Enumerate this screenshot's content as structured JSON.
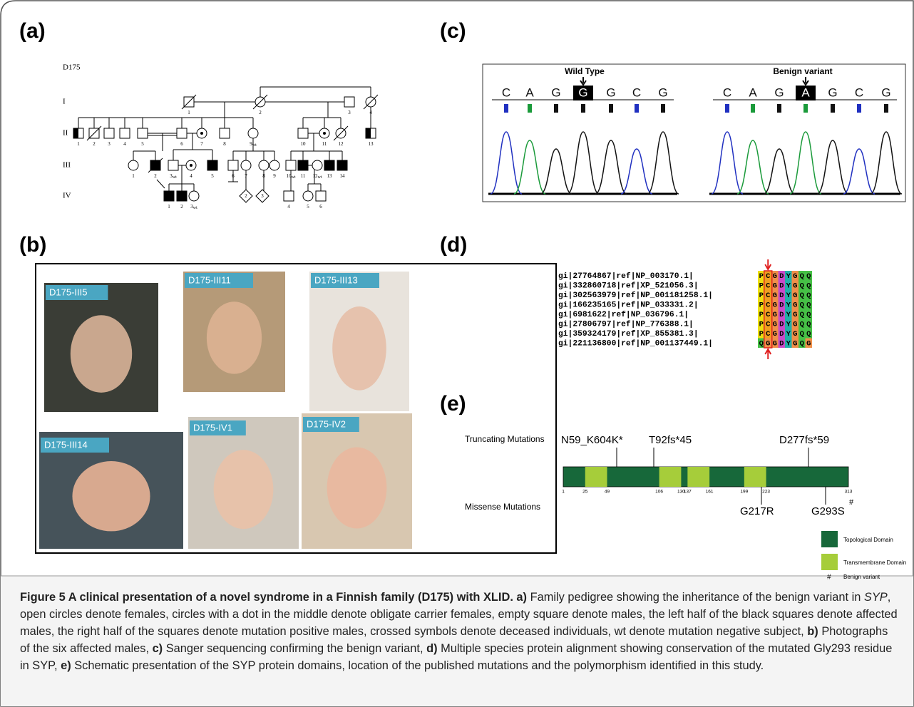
{
  "panels": {
    "a": "(a)",
    "b": "(b)",
    "c": "(c)",
    "d": "(d)",
    "e": "(e)"
  },
  "pedigree": {
    "family": "D175",
    "generations": [
      {
        "label": "I",
        "individuals": [
          {
            "label": "1"
          },
          {
            "label": "2"
          },
          {
            "label": "3"
          },
          {
            "label": "4"
          }
        ]
      },
      {
        "label": "II",
        "individuals": [
          {
            "label": "1"
          },
          {
            "label": "2"
          },
          {
            "label": "3"
          },
          {
            "label": "4"
          },
          {
            "label": "5"
          },
          {
            "label": "6"
          },
          {
            "label": "7"
          },
          {
            "label": "8"
          },
          {
            "label": "9",
            "sub": "wt"
          },
          {
            "label": "10"
          },
          {
            "label": "11"
          },
          {
            "label": "12"
          },
          {
            "label": "13"
          }
        ]
      },
      {
        "label": "III",
        "individuals": [
          {
            "label": "1"
          },
          {
            "label": "2"
          },
          {
            "label": "3",
            "sub": "wt"
          },
          {
            "label": "4"
          },
          {
            "label": "5"
          },
          {
            "label": "6"
          },
          {
            "label": "7"
          },
          {
            "label": "8"
          },
          {
            "label": "9"
          },
          {
            "label": "10",
            "sub": "wt"
          },
          {
            "label": "11"
          },
          {
            "label": "12",
            "sub": "wt"
          },
          {
            "label": "13"
          },
          {
            "label": "14"
          }
        ]
      },
      {
        "label": "IV",
        "individuals": [
          {
            "label": "1"
          },
          {
            "label": "2"
          },
          {
            "label": "3",
            "sub": "wt"
          },
          {
            "label": "2"
          },
          {
            "label": "3"
          },
          {
            "label": "4"
          },
          {
            "label": "5"
          },
          {
            "label": "6"
          }
        ]
      }
    ]
  },
  "photos": [
    "D175-III5",
    "D175-III11",
    "D175-III13",
    "D175-III14",
    "D175-IV1",
    "D175-IV2"
  ],
  "sequencing": [
    {
      "title": "Wild Type",
      "bases": [
        "C",
        "A",
        "G",
        "G",
        "G",
        "C",
        "G"
      ]
    },
    {
      "title": "Benign variant",
      "bases": [
        "C",
        "A",
        "G",
        "A",
        "G",
        "C",
        "G"
      ]
    }
  ],
  "alignment": [
    {
      "id": "gi|27764867|ref|NP_003170.1|",
      "sequence": [
        "P",
        "C",
        "G",
        "D",
        "Y",
        "G",
        "Q",
        "Q"
      ]
    },
    {
      "id": "gi|332860718|ref|XP_521056.3|",
      "sequence": [
        "P",
        "C",
        "G",
        "D",
        "Y",
        "G",
        "Q",
        "Q"
      ]
    },
    {
      "id": "gi|302563979|ref|NP_001181258.1|",
      "sequence": [
        "P",
        "C",
        "G",
        "D",
        "Y",
        "G",
        "Q",
        "Q"
      ]
    },
    {
      "id": "gi|166235165|ref|NP_033331.2|",
      "sequence": [
        "P",
        "C",
        "G",
        "D",
        "Y",
        "G",
        "Q",
        "Q"
      ]
    },
    {
      "id": "gi|6981622|ref|NP_036796.1|",
      "sequence": [
        "P",
        "C",
        "G",
        "D",
        "Y",
        "G",
        "Q",
        "Q"
      ]
    },
    {
      "id": "gi|27806797|ref|NP_776388.1|",
      "sequence": [
        "P",
        "C",
        "G",
        "D",
        "Y",
        "G",
        "Q",
        "Q"
      ]
    },
    {
      "id": "gi|359324179|ref|XP_855381.3|",
      "sequence": [
        "P",
        "C",
        "G",
        "D",
        "Y",
        "G",
        "Q",
        "Q"
      ]
    },
    {
      "id": "gi|221136800|ref|NP_001137449.1|",
      "sequence": [
        "Q",
        "G",
        "G",
        "D",
        "Y",
        "G",
        "Q",
        "G"
      ]
    }
  ],
  "domains": {
    "truncating_label": "Truncating Mutations",
    "missense_label": "Missense Mutations",
    "truncating": [
      "N59_K604K*",
      "T92fs*45",
      "D277fs*59"
    ],
    "missense": [
      "G217R",
      "G293S"
    ],
    "benign_mark": "#",
    "positions": [
      1,
      25,
      49,
      106,
      130,
      137,
      161,
      199,
      223,
      313
    ],
    "legend": {
      "topological": "Topological Domain",
      "transmembrane": "Transmembrane Domain",
      "benign": "Benign variant"
    }
  },
  "caption": [
    {
      "text": "Figure 5 A clinical presentation of a novel syndrome in a Finnish family (D175) with XLID. a)",
      "style": "bold"
    },
    {
      "text": " Family pedigree showing the inheritance of the benign variant in ",
      "style": "normal"
    },
    {
      "text": "SYP",
      "style": "italic"
    },
    {
      "text": ", open circles denote females, circles with a dot in the middle denote obligate carrier females, empty square denote males, the left half of the black squares denote affected males, the right half of the squares denote mutation positive males, crossed symbols denote deceased individuals, wt denote mutation negative subject, ",
      "style": "normal"
    },
    {
      "text": "b)",
      "style": "bold"
    },
    {
      "text": " Photographs of the six affected males, ",
      "style": "normal"
    },
    {
      "text": "c)",
      "style": "bold"
    },
    {
      "text": " Sanger sequencing confirming the benign variant, ",
      "style": "normal"
    },
    {
      "text": "d)",
      "style": "bold"
    },
    {
      "text": " Multiple species protein alignment showing conservation of the mutated Gly293 residue in SYP, ",
      "style": "normal"
    },
    {
      "text": "e)",
      "style": "bold"
    },
    {
      "text": " Schematic presentation of the SYP protein domains, location of the published mutations and the polymorphism identified in this study.",
      "style": "normal"
    }
  ]
}
